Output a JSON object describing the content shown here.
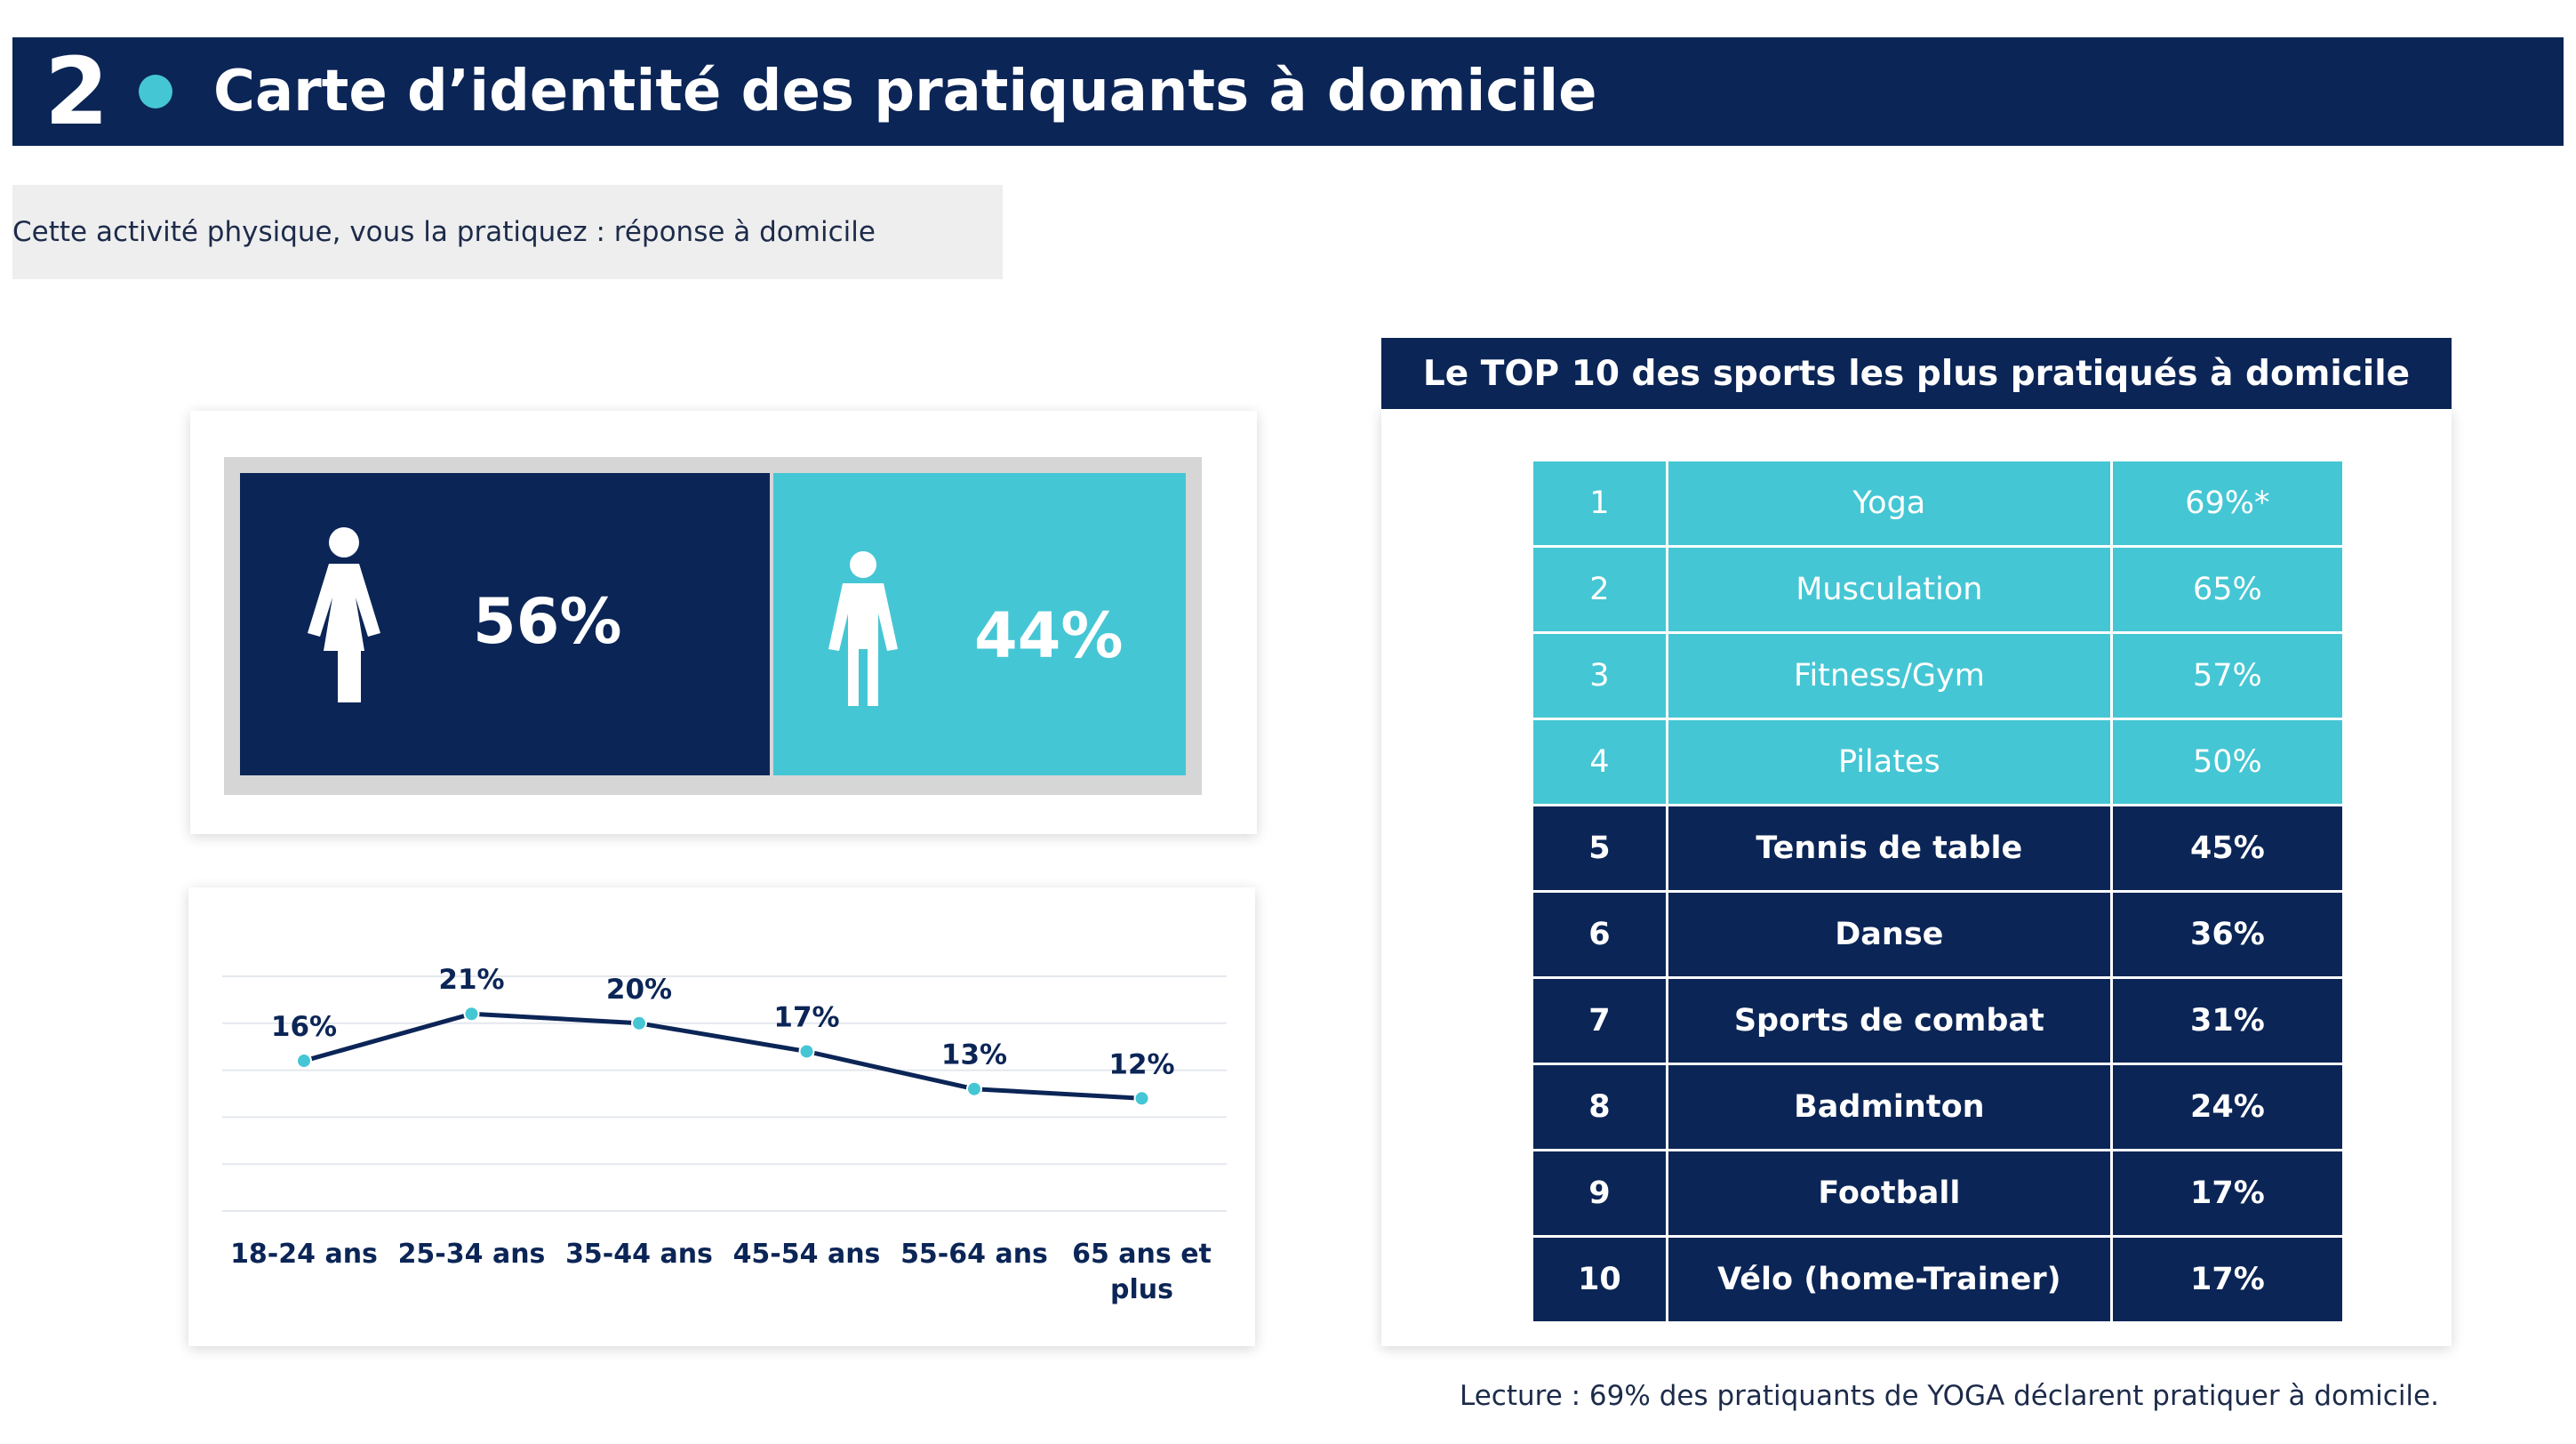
{
  "header": {
    "number": "2",
    "title": "Carte d’identité des pratiquants à domicile"
  },
  "question": "Cette activité physique, vous la pratiquez : réponse à domicile",
  "colors": {
    "navy": "#0b2556",
    "cyan": "#45c6d4"
  },
  "gender": {
    "female": {
      "icon": "woman-icon",
      "pct": "56%",
      "value": 56
    },
    "male": {
      "icon": "man-icon",
      "pct": "44%",
      "value": 44
    }
  },
  "top10": {
    "title": "Le TOP 10 des sports les plus pratiqués à domicile",
    "rows": [
      {
        "rank": "1",
        "sport": "Yoga",
        "pct": "69%*"
      },
      {
        "rank": "2",
        "sport": "Musculation",
        "pct": "65%"
      },
      {
        "rank": "3",
        "sport": "Fitness/Gym",
        "pct": "57%"
      },
      {
        "rank": "4",
        "sport": "Pilates",
        "pct": "50%"
      },
      {
        "rank": "5",
        "sport": "Tennis de table",
        "pct": "45%"
      },
      {
        "rank": "6",
        "sport": "Danse",
        "pct": "36%"
      },
      {
        "rank": "7",
        "sport": "Sports de combat",
        "pct": "31%"
      },
      {
        "rank": "8",
        "sport": "Badminton",
        "pct": "24%"
      },
      {
        "rank": "9",
        "sport": "Football",
        "pct": "17%"
      },
      {
        "rank": "10",
        "sport": "Vélo (home-Trainer)",
        "pct": "17%"
      }
    ]
  },
  "footnote": "Lecture : 69% des pratiquants de YOGA déclarent pratiquer à domicile.",
  "chart_data": {
    "type": "line",
    "categories": [
      [
        "18-24 ans"
      ],
      [
        "25-34 ans"
      ],
      [
        "35-44 ans"
      ],
      [
        "45-54 ans"
      ],
      [
        "55-64 ans"
      ],
      [
        "65 ans et",
        "plus"
      ]
    ],
    "values": [
      16,
      21,
      20,
      17,
      13,
      12
    ],
    "labels": [
      "16%",
      "21%",
      "20%",
      "17%",
      "13%",
      "12%"
    ],
    "title": "",
    "xlabel": "",
    "ylabel": "",
    "ylim": [
      0,
      25
    ],
    "grid": true,
    "legend": "none"
  }
}
